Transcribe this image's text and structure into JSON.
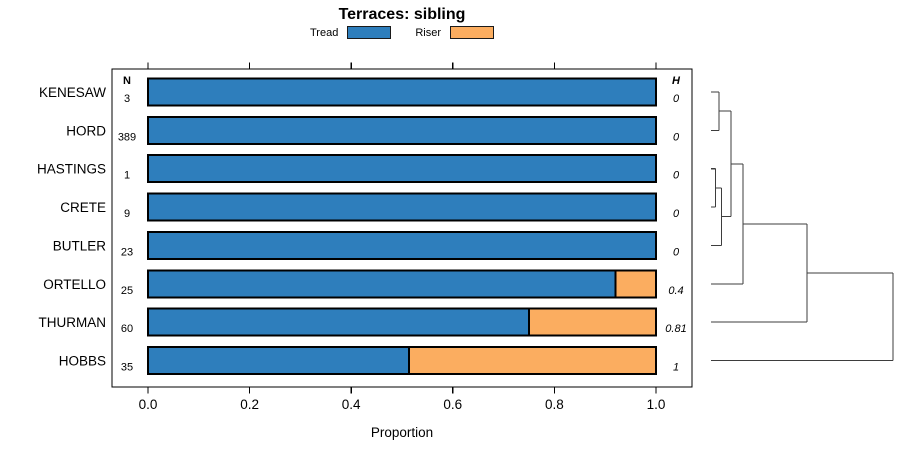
{
  "chart_data": {
    "type": "bar",
    "stacked": true,
    "orientation": "horizontal",
    "title": "Terraces: sibling",
    "xlabel": "Proportion",
    "xlim": [
      0,
      1
    ],
    "x_ticks": [
      0,
      0.2,
      0.4,
      0.6,
      0.8,
      1.0
    ],
    "x_tick_labels": [
      "0.0",
      "0.2",
      "0.4",
      "0.6",
      "0.8",
      "1.0"
    ],
    "legend": [
      {
        "name": "Tread",
        "color": "#2E7EBC"
      },
      {
        "name": "Riser",
        "color": "#FBAD60"
      }
    ],
    "n_column_header": "N",
    "h_column_header": "H",
    "rows": [
      {
        "label": "KENESAW",
        "n": 3,
        "tread": 1.0,
        "riser": 0.0,
        "h": "0"
      },
      {
        "label": "HORD",
        "n": 389,
        "tread": 1.0,
        "riser": 0.0,
        "h": "0"
      },
      {
        "label": "HASTINGS",
        "n": 1,
        "tread": 1.0,
        "riser": 0.0,
        "h": "0"
      },
      {
        "label": "CRETE",
        "n": 9,
        "tread": 1.0,
        "riser": 0.0,
        "h": "0"
      },
      {
        "label": "BUTLER",
        "n": 23,
        "tread": 1.0,
        "riser": 0.0,
        "h": "0"
      },
      {
        "label": "ORTELLO",
        "n": 25,
        "tread": 0.92,
        "riser": 0.08,
        "h": "0.4"
      },
      {
        "label": "THURMAN",
        "n": 60,
        "tread": 0.75,
        "riser": 0.25,
        "h": "0.81"
      },
      {
        "label": "HOBBS",
        "n": 35,
        "tread": 0.514,
        "riser": 0.486,
        "h": "1"
      }
    ],
    "dendrogram": {
      "leaves": [
        "KENESAW",
        "HORD",
        "HASTINGS",
        "CRETE",
        "BUTLER",
        "ORTELLO",
        "THURMAN",
        "HOBBS"
      ],
      "merges": [
        {
          "id": "m1",
          "children": [
            "HASTINGS",
            "CRETE"
          ],
          "height": 0.025
        },
        {
          "id": "m2",
          "children": [
            "KENESAW",
            "HORD"
          ],
          "height": 0.044
        },
        {
          "id": "m3",
          "children": [
            "m1",
            "BUTLER"
          ],
          "height": 0.058
        },
        {
          "id": "m4",
          "children": [
            "m2",
            "m3"
          ],
          "height": 0.11
        },
        {
          "id": "m5",
          "children": [
            "m4",
            "ORTELLO"
          ],
          "height": 0.176
        },
        {
          "id": "m6",
          "children": [
            "m5",
            "THURMAN"
          ],
          "height": 0.527
        },
        {
          "id": "m7",
          "children": [
            "m6",
            "HOBBS"
          ],
          "height": 1.0
        }
      ]
    }
  }
}
